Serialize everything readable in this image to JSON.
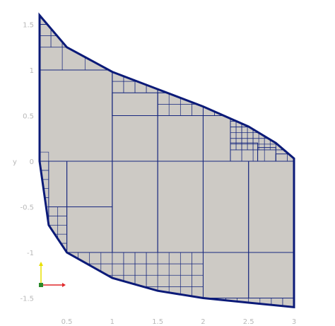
{
  "chart_data": {
    "type": "mesh",
    "xlabel": "",
    "ylabel": "y",
    "xlim": [
      0.2,
      3.0
    ],
    "ylim": [
      -1.65,
      1.65
    ],
    "x_ticks": [
      "0.5",
      "1",
      "1.5",
      "2",
      "2.5",
      "3"
    ],
    "x_tick_values": [
      0.5,
      1.0,
      1.5,
      2.0,
      2.5,
      3.0
    ],
    "y_ticks": [
      "1.5",
      "1",
      "0.5",
      "0",
      "-0.5",
      "-1",
      "-1.5"
    ],
    "y_tick_values": [
      1.5,
      1.0,
      0.5,
      0.0,
      -0.5,
      -1.0,
      -1.5
    ],
    "domain_boundary": {
      "top_curve": [
        [
          0.2,
          1.6
        ],
        [
          0.5,
          1.25
        ],
        [
          1.0,
          0.98
        ],
        [
          1.5,
          0.79
        ],
        [
          2.0,
          0.6
        ],
        [
          2.5,
          0.38
        ],
        [
          2.8,
          0.2
        ],
        [
          3.0,
          0.03
        ]
      ],
      "bottom_curve": [
        [
          0.2,
          0.0
        ],
        [
          0.3,
          -0.7
        ],
        [
          0.5,
          -1.0
        ],
        [
          1.0,
          -1.28
        ],
        [
          1.5,
          -1.42
        ],
        [
          2.0,
          -1.5
        ],
        [
          2.5,
          -1.55
        ],
        [
          3.0,
          -1.6
        ]
      ]
    },
    "large_cells": [
      [
        0.2,
        0.0,
        1.0,
        1.0
      ],
      [
        1.0,
        0.5,
        1.5,
        1.0
      ],
      [
        1.0,
        0.0,
        1.5,
        0.5
      ],
      [
        1.5,
        0.0,
        2.0,
        0.5
      ],
      [
        2.0,
        0.0,
        2.3,
        0.5
      ],
      [
        0.2,
        -1.0,
        0.5,
        0.0
      ],
      [
        0.5,
        -0.5,
        1.0,
        0.0
      ],
      [
        0.5,
        -1.0,
        1.0,
        -0.5
      ],
      [
        1.0,
        -1.0,
        1.5,
        0.0
      ],
      [
        1.5,
        -1.0,
        2.0,
        0.0
      ],
      [
        2.0,
        -1.0,
        2.5,
        0.0
      ],
      [
        2.5,
        -1.0,
        3.0,
        0.0
      ],
      [
        2.0,
        -1.5,
        2.5,
        -1.0
      ],
      [
        2.5,
        -1.5,
        3.0,
        -1.0
      ]
    ],
    "colors": {
      "fill": "#cdcac5",
      "edge": "#18287e",
      "boundary": "#0b1a78",
      "tick_text": "#b8b8b8"
    }
  },
  "orientation_triad": {
    "x_axis_color": "#e0282a",
    "y_axis_color": "#e8e000",
    "origin_color": "#2a8a2a"
  }
}
